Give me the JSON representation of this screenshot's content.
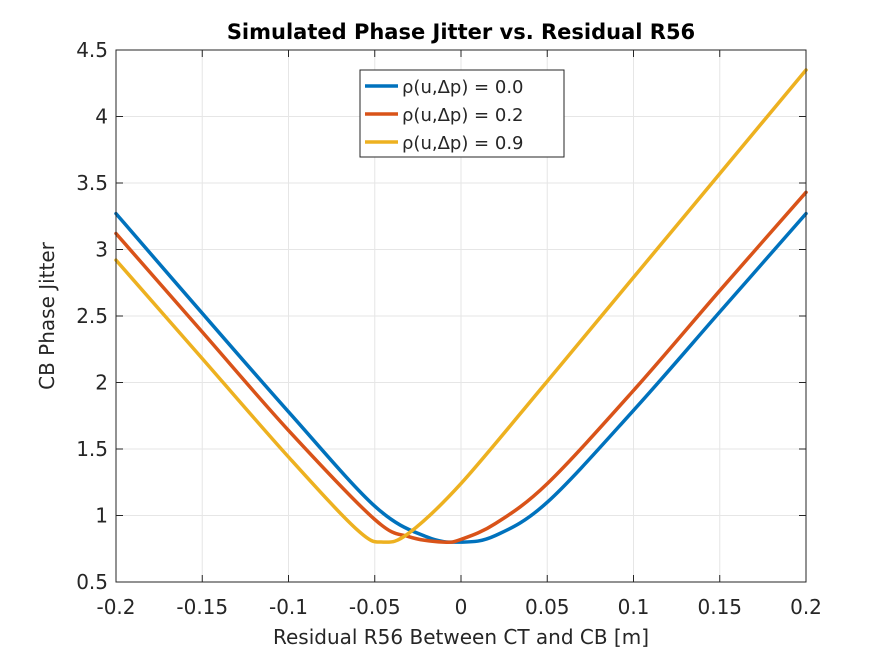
{
  "chart_data": {
    "type": "line",
    "title": "Simulated Phase Jitter vs. Residual R56",
    "xlabel": "Residual R56 Between CT and CB [m]",
    "ylabel": "CB Phase Jitter",
    "xlim": [
      -0.2,
      0.2
    ],
    "ylim": [
      0.5,
      4.5
    ],
    "xticks": [
      -0.2,
      -0.15,
      -0.1,
      -0.05,
      0,
      0.05,
      0.1,
      0.15,
      0.2
    ],
    "xtick_labels": [
      "-0.2",
      "-0.15",
      "-0.1",
      "-0.05",
      "0",
      "0.05",
      "0.1",
      "0.15",
      "0.2"
    ],
    "yticks": [
      0.5,
      1,
      1.5,
      2,
      2.5,
      3,
      3.5,
      4,
      4.5
    ],
    "ytick_labels": [
      "0.5",
      "1",
      "1.5",
      "2",
      "2.5",
      "3",
      "3.5",
      "4",
      "4.5"
    ],
    "grid": true,
    "legend_position": "top-center",
    "series": [
      {
        "name": "ρ(u,Δp) = 0.0",
        "color": "#0072BD",
        "x": [
          -0.2,
          -0.15,
          -0.1,
          -0.05,
          -0.02,
          0,
          0.02,
          0.05,
          0.1,
          0.15,
          0.2
        ],
        "y": [
          3.27,
          2.52,
          1.78,
          1.07,
          0.84,
          0.8,
          0.85,
          1.1,
          1.79,
          2.53,
          3.27
        ]
      },
      {
        "name": "ρ(u,Δp) = 0.2",
        "color": "#D95319",
        "x": [
          -0.2,
          -0.15,
          -0.1,
          -0.05,
          -0.03,
          -0.01,
          0,
          0.02,
          0.05,
          0.1,
          0.15,
          0.2
        ],
        "y": [
          3.12,
          2.38,
          1.64,
          0.97,
          0.84,
          0.8,
          0.82,
          0.94,
          1.24,
          1.94,
          2.69,
          3.43
        ]
      },
      {
        "name": "ρ(u,Δp) = 0.9",
        "color": "#EDB120",
        "x": [
          -0.2,
          -0.15,
          -0.1,
          -0.06,
          -0.045,
          -0.03,
          0,
          0.05,
          0.1,
          0.15,
          0.2
        ],
        "y": [
          2.92,
          2.18,
          1.44,
          0.89,
          0.8,
          0.87,
          1.24,
          2.01,
          2.79,
          3.57,
          4.35
        ]
      }
    ]
  }
}
